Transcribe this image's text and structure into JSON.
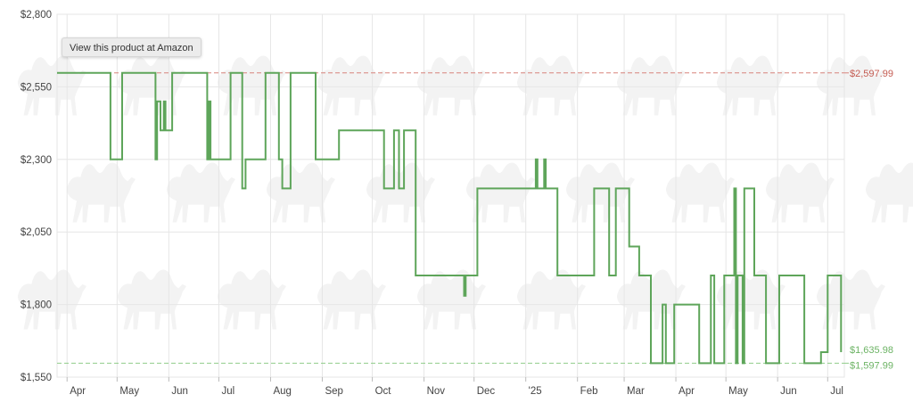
{
  "product_link_label": "View this product at Amazon",
  "colors": {
    "price_line": "#5ea55a",
    "highest_line": "#d8837c",
    "lowest_line": "#90cd89",
    "highest_label": "#c45c52",
    "lowest_label": "#6cb364",
    "grid": "#e6e6e6",
    "axis_text": "#444444",
    "watermark": "#f3f3f3"
  },
  "chart_data": {
    "type": "line",
    "title": "",
    "xlabel": "",
    "ylabel": "",
    "x_type": "date",
    "xlim": [
      "2024-03-26",
      "2025-07-11"
    ],
    "ylim": [
      1550,
      2800
    ],
    "y_ticks": [
      "$1,550",
      "$1,800",
      "$2,050",
      "$2,300",
      "$2,550",
      "$2,800"
    ],
    "y_tick_values": [
      1550,
      1800,
      2050,
      2300,
      2550,
      2800
    ],
    "x_ticks": [
      {
        "date": "2024-04-01",
        "label": "Apr"
      },
      {
        "date": "2024-05-01",
        "label": "May"
      },
      {
        "date": "2024-06-01",
        "label": "Jun"
      },
      {
        "date": "2024-07-01",
        "label": "Jul"
      },
      {
        "date": "2024-08-01",
        "label": "Aug"
      },
      {
        "date": "2024-09-01",
        "label": "Sep"
      },
      {
        "date": "2024-10-01",
        "label": "Oct"
      },
      {
        "date": "2024-11-01",
        "label": "Nov"
      },
      {
        "date": "2024-12-01",
        "label": "Dec"
      },
      {
        "date": "2025-01-01",
        "label": "'25"
      },
      {
        "date": "2025-02-01",
        "label": "Feb"
      },
      {
        "date": "2025-03-01",
        "label": "Mar"
      },
      {
        "date": "2025-04-01",
        "label": "Apr"
      },
      {
        "date": "2025-05-01",
        "label": "May"
      },
      {
        "date": "2025-06-01",
        "label": "Jun"
      },
      {
        "date": "2025-07-01",
        "label": "Jul"
      }
    ],
    "grid": true,
    "reference_lines": [
      {
        "label": "$2,597.99",
        "value": 2597.99,
        "kind": "highest"
      },
      {
        "label": "$1,597.99",
        "value": 1597.99,
        "kind": "lowest"
      }
    ],
    "current_price_label": "$1,635.98",
    "current_price": 1635.98,
    "series": [
      {
        "values": [
          [
            "2024-03-26",
            2597.99
          ],
          [
            "2024-04-27",
            2597.99
          ],
          [
            "2024-04-27",
            2300
          ],
          [
            "2024-05-04",
            2300
          ],
          [
            "2024-05-04",
            2597.99
          ],
          [
            "2024-05-24",
            2597.99
          ],
          [
            "2024-05-24",
            2300
          ],
          [
            "2024-05-25",
            2300
          ],
          [
            "2024-05-25",
            2500
          ],
          [
            "2024-05-27",
            2500
          ],
          [
            "2024-05-27",
            2400
          ],
          [
            "2024-05-29",
            2400
          ],
          [
            "2024-05-29",
            2500
          ],
          [
            "2024-05-30",
            2500
          ],
          [
            "2024-05-30",
            2400
          ],
          [
            "2024-06-03",
            2400
          ],
          [
            "2024-06-03",
            2597.99
          ],
          [
            "2024-06-24",
            2597.99
          ],
          [
            "2024-06-24",
            2300
          ],
          [
            "2024-06-25",
            2300
          ],
          [
            "2024-06-25",
            2500
          ],
          [
            "2024-06-26",
            2500
          ],
          [
            "2024-06-26",
            2300
          ],
          [
            "2024-07-08",
            2300
          ],
          [
            "2024-07-08",
            2597.99
          ],
          [
            "2024-07-15",
            2597.99
          ],
          [
            "2024-07-15",
            2200
          ],
          [
            "2024-07-17",
            2200
          ],
          [
            "2024-07-17",
            2300
          ],
          [
            "2024-07-29",
            2300
          ],
          [
            "2024-07-29",
            2597.99
          ],
          [
            "2024-08-06",
            2597.99
          ],
          [
            "2024-08-06",
            2300
          ],
          [
            "2024-08-08",
            2300
          ],
          [
            "2024-08-08",
            2200
          ],
          [
            "2024-08-13",
            2200
          ],
          [
            "2024-08-13",
            2597.99
          ],
          [
            "2024-08-28",
            2597.99
          ],
          [
            "2024-08-28",
            2300
          ],
          [
            "2024-09-11",
            2300
          ],
          [
            "2024-09-11",
            2400
          ],
          [
            "2024-10-08",
            2400
          ],
          [
            "2024-10-08",
            2200
          ],
          [
            "2024-10-14",
            2200
          ],
          [
            "2024-10-14",
            2400
          ],
          [
            "2024-10-17",
            2400
          ],
          [
            "2024-10-17",
            2200
          ],
          [
            "2024-10-20",
            2200
          ],
          [
            "2024-10-20",
            2400
          ],
          [
            "2024-10-27",
            2400
          ],
          [
            "2024-10-27",
            1900
          ],
          [
            "2024-11-25",
            1900
          ],
          [
            "2024-11-25",
            1830
          ],
          [
            "2024-11-26",
            1830
          ],
          [
            "2024-11-26",
            1900
          ],
          [
            "2024-12-03",
            1900
          ],
          [
            "2024-12-03",
            2200
          ],
          [
            "2025-01-07",
            2200
          ],
          [
            "2025-01-07",
            2300
          ],
          [
            "2025-01-08",
            2300
          ],
          [
            "2025-01-08",
            2200
          ],
          [
            "2025-01-12",
            2200
          ],
          [
            "2025-01-12",
            2300
          ],
          [
            "2025-01-13",
            2300
          ],
          [
            "2025-01-13",
            2200
          ],
          [
            "2025-01-20",
            2200
          ],
          [
            "2025-01-20",
            1900
          ],
          [
            "2025-02-11",
            1900
          ],
          [
            "2025-02-11",
            2200
          ],
          [
            "2025-02-20",
            2200
          ],
          [
            "2025-02-20",
            1900
          ],
          [
            "2025-02-24",
            1900
          ],
          [
            "2025-02-24",
            2200
          ],
          [
            "2025-03-04",
            2200
          ],
          [
            "2025-03-04",
            2000
          ],
          [
            "2025-03-10",
            2000
          ],
          [
            "2025-03-10",
            1900
          ],
          [
            "2025-03-17",
            1900
          ],
          [
            "2025-03-17",
            1597.99
          ],
          [
            "2025-03-24",
            1597.99
          ],
          [
            "2025-03-24",
            1800
          ],
          [
            "2025-03-26",
            1800
          ],
          [
            "2025-03-26",
            1597.99
          ],
          [
            "2025-03-31",
            1597.99
          ],
          [
            "2025-03-31",
            1800
          ],
          [
            "2025-04-15",
            1800
          ],
          [
            "2025-04-15",
            1597.99
          ],
          [
            "2025-04-22",
            1597.99
          ],
          [
            "2025-04-22",
            1900
          ],
          [
            "2025-04-24",
            1900
          ],
          [
            "2025-04-24",
            1597.99
          ],
          [
            "2025-04-30",
            1597.99
          ],
          [
            "2025-04-30",
            1900
          ],
          [
            "2025-05-06",
            1900
          ],
          [
            "2025-05-06",
            2200
          ],
          [
            "2025-05-07",
            2200
          ],
          [
            "2025-05-07",
            1597.99
          ],
          [
            "2025-05-08",
            1597.99
          ],
          [
            "2025-05-08",
            1900
          ],
          [
            "2025-05-11",
            1900
          ],
          [
            "2025-05-11",
            1597.99
          ],
          [
            "2025-05-12",
            1597.99
          ],
          [
            "2025-05-12",
            2200
          ],
          [
            "2025-05-18",
            2200
          ],
          [
            "2025-05-18",
            1900
          ],
          [
            "2025-05-25",
            1900
          ],
          [
            "2025-05-25",
            1597.99
          ],
          [
            "2025-06-02",
            1597.99
          ],
          [
            "2025-06-02",
            1900
          ],
          [
            "2025-06-17",
            1900
          ],
          [
            "2025-06-17",
            1597.99
          ],
          [
            "2025-06-27",
            1597.99
          ],
          [
            "2025-06-27",
            1635.98
          ],
          [
            "2025-07-01",
            1635.98
          ],
          [
            "2025-07-01",
            1900
          ],
          [
            "2025-07-09",
            1900
          ],
          [
            "2025-07-09",
            1635.98
          ]
        ]
      }
    ]
  }
}
